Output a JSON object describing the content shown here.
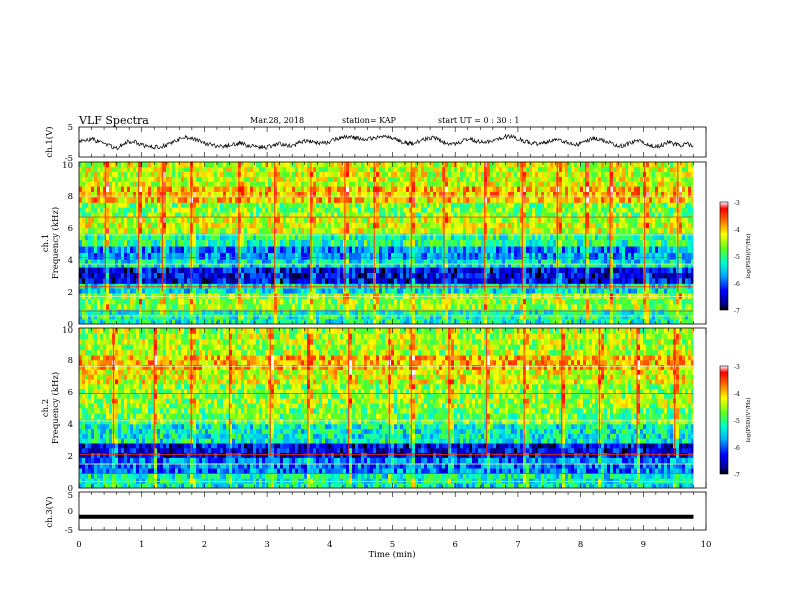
{
  "header": {
    "title": "VLF Spectra",
    "date": "Mar.28, 2018",
    "station": "station= KAP",
    "start": "start  UT  =   0 : 30 : 1"
  },
  "chart_data": [
    {
      "type": "line",
      "panel": "ch1-waveform",
      "ylabel": "ch.1(V)",
      "xlim": [
        0,
        10
      ],
      "ylim": [
        -5,
        5
      ],
      "yticks": [
        "5",
        "-5"
      ],
      "x_extent_min": 9.8,
      "series": [
        {
          "values": [
            0.6,
            0.1,
            1.2,
            0.3,
            -0.6,
            -1.4,
            -2.2,
            -1.0,
            0.2,
            0.1,
            -0.9,
            -1.6,
            -1.8,
            -1.5,
            -1.2,
            -0.4,
            0.8,
            1.6,
            1.5,
            0.6,
            -0.2,
            -0.8,
            -1.2,
            -1.6,
            -1.1,
            -0.7,
            -0.3,
            -1.1,
            -1.4,
            -1.7,
            -1.9,
            -1.2,
            -0.6,
            -0.9,
            -1.2,
            -0.7,
            0.1,
            0.5,
            -0.2,
            -0.4,
            -0.1,
            0.6,
            1.4,
            1.8,
            1.6,
            1.2,
            0.8,
            1.1,
            1.6,
            2.1,
            1.7,
            0.9,
            0.1,
            -0.6,
            -0.3,
            0.4,
            1.0,
            1.4,
            0.8,
            -0.2,
            -0.8,
            -0.4,
            0.6,
            0.9,
            0.3,
            -0.1,
            0.2,
            0.7,
            1.4,
            1.9,
            1.5,
            0.8,
            0.2,
            -0.4,
            -0.6,
            -0.1,
            0.4,
            0.8,
            0.3,
            -0.5,
            -1.0,
            -0.3,
            0.6,
            1.2,
            0.7,
            0.2,
            -0.8,
            -1.4,
            -1.0,
            -0.3,
            0.5,
            -0.2,
            -1.1,
            -1.6,
            -0.9,
            -0.1,
            -0.7,
            -1.3,
            -0.6,
            -1.2
          ]
        }
      ]
    },
    {
      "type": "heatmap",
      "panel": "ch1-spectrogram",
      "ylabel_lines": [
        "ch.1",
        "Frequency (kHz)"
      ],
      "ylim": [
        0,
        10
      ],
      "yticks": [
        "0",
        "2",
        "4",
        "6",
        "8",
        "10"
      ],
      "colorbar": {
        "label": "log(PSD)(V²/Hz)",
        "range": [
          -7,
          -3
        ],
        "ticks": [
          "-3",
          "-4",
          "-5",
          "-6",
          "-7"
        ]
      },
      "bands_kHz": [
        {
          "from": 0.0,
          "to": 0.9,
          "level": -5.2
        },
        {
          "from": 0.9,
          "to": 1.9,
          "level": -4.6
        },
        {
          "from": 1.9,
          "to": 2.5,
          "level": -5.4
        },
        {
          "from": 2.5,
          "to": 3.5,
          "level": -6.4
        },
        {
          "from": 3.5,
          "to": 4.0,
          "level": -5.4
        },
        {
          "from": 4.0,
          "to": 4.8,
          "level": -5.8
        },
        {
          "from": 4.8,
          "to": 5.6,
          "level": -5.1
        },
        {
          "from": 5.6,
          "to": 6.6,
          "level": -4.4
        },
        {
          "from": 6.6,
          "to": 7.5,
          "level": -4.7
        },
        {
          "from": 7.5,
          "to": 8.5,
          "level": -4.0
        },
        {
          "from": 8.5,
          "to": 10.0,
          "level": -4.4
        }
      ],
      "tones_kHz": [
        0.5,
        0.8,
        1.7,
        2.3,
        3.7,
        4.1,
        5.5,
        6.6,
        7.9
      ],
      "sferics_min": [
        0.42,
        0.95,
        1.33,
        1.79,
        2.55,
        3.12,
        3.7,
        4.24,
        4.71,
        5.3,
        5.82,
        6.47,
        7.07,
        7.63,
        8.08,
        8.47,
        9.02,
        9.55
      ]
    },
    {
      "type": "heatmap",
      "panel": "ch2-spectrogram",
      "ylabel_lines": [
        "ch.2",
        "Frequency (kHz)"
      ],
      "ylim": [
        0,
        10
      ],
      "yticks": [
        "0",
        "2",
        "4",
        "6",
        "8",
        "10"
      ],
      "colorbar": {
        "label": "log(PSD)(V²/Hz)",
        "range": [
          -7,
          -3
        ],
        "ticks": [
          "-3",
          "-4",
          "-5",
          "-6",
          "-7"
        ]
      },
      "bands_kHz": [
        {
          "from": 0.0,
          "to": 0.9,
          "level": -5.3
        },
        {
          "from": 0.9,
          "to": 1.9,
          "level": -5.9
        },
        {
          "from": 1.9,
          "to": 2.8,
          "level": -6.4
        },
        {
          "from": 2.8,
          "to": 4.0,
          "level": -5.3
        },
        {
          "from": 4.0,
          "to": 5.0,
          "level": -4.8
        },
        {
          "from": 5.0,
          "to": 6.5,
          "level": -4.6
        },
        {
          "from": 6.5,
          "to": 7.4,
          "level": -4.3
        },
        {
          "from": 7.4,
          "to": 8.3,
          "level": -4.0
        },
        {
          "from": 8.3,
          "to": 10.0,
          "level": -4.5
        }
      ],
      "tones_kHz": [
        0.4,
        0.9,
        1.5,
        2.1,
        4.2,
        5.9,
        7.6
      ],
      "sferics_min": [
        0.55,
        1.2,
        1.79,
        2.4,
        3.05,
        3.65,
        4.3,
        4.95,
        5.3,
        5.9,
        6.5,
        7.1,
        7.7,
        8.3,
        8.9,
        9.5
      ]
    },
    {
      "type": "line",
      "panel": "ch3-waveform",
      "ylabel": "ch.3(V)",
      "xlim": [
        0,
        10
      ],
      "ylim": [
        -5,
        5
      ],
      "yticks": [
        "5",
        "0",
        "-5"
      ],
      "series": [
        {
          "x": [
            0.0,
            9.8
          ],
          "values": [
            -1.5,
            -1.5
          ]
        }
      ]
    }
  ],
  "xaxis": {
    "label": "Time (min)",
    "ticks": [
      "0",
      "1",
      "2",
      "3",
      "4",
      "5",
      "6",
      "7",
      "8",
      "9",
      "10"
    ]
  }
}
